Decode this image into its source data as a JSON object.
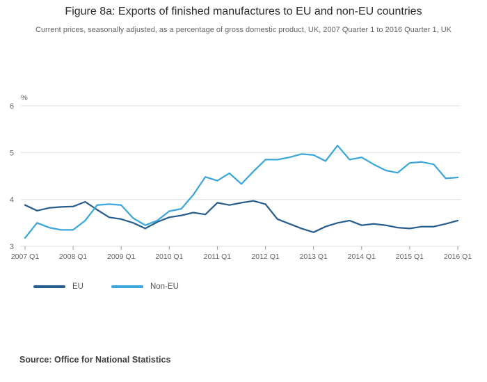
{
  "header": {
    "title": "Figure 8a: Exports of finished manufactures to EU and non-EU countries",
    "subtitle": "Current prices, seasonally adjusted, as a percentage of gross domestic product, UK, 2007 Quarter 1 to 2016 Quarter 1, UK"
  },
  "source": "Source: Office for National Statistics",
  "chart_data": {
    "type": "line",
    "title": "Figure 8a: Exports of finished manufactures to EU and non-EU countries",
    "subtitle": "Current prices, seasonally adjusted, as a percentage of gross domestic product, UK, 2007 Quarter 1 to 2016 Quarter 1, UK",
    "ylabel": "%",
    "ylim": [
      3,
      6
    ],
    "yticks": [
      3,
      4,
      5,
      6
    ],
    "grid": true,
    "legend_position": "bottom-left",
    "xtick_every": 4,
    "x": [
      "2007 Q1",
      "2007 Q2",
      "2007 Q3",
      "2007 Q4",
      "2008 Q1",
      "2008 Q2",
      "2008 Q3",
      "2008 Q4",
      "2009 Q1",
      "2009 Q2",
      "2009 Q3",
      "2009 Q4",
      "2010 Q1",
      "2010 Q2",
      "2010 Q3",
      "2010 Q4",
      "2011 Q1",
      "2011 Q2",
      "2011 Q3",
      "2011 Q4",
      "2012 Q1",
      "2012 Q2",
      "2012 Q3",
      "2012 Q4",
      "2013 Q1",
      "2013 Q2",
      "2013 Q3",
      "2013 Q4",
      "2014 Q1",
      "2014 Q2",
      "2014 Q3",
      "2014 Q4",
      "2015 Q1",
      "2015 Q2",
      "2015 Q3",
      "2015 Q4",
      "2016 Q1"
    ],
    "series": [
      {
        "name": "EU",
        "color": "#275e8e",
        "values": [
          3.88,
          3.76,
          3.82,
          3.84,
          3.85,
          3.95,
          3.78,
          3.62,
          3.58,
          3.5,
          3.38,
          3.52,
          3.62,
          3.66,
          3.72,
          3.68,
          3.93,
          3.88,
          3.93,
          3.97,
          3.9,
          3.58,
          3.48,
          3.38,
          3.3,
          3.42,
          3.5,
          3.55,
          3.45,
          3.48,
          3.45,
          3.4,
          3.38,
          3.42,
          3.42,
          3.48,
          3.55
        ]
      },
      {
        "name": "Non-EU",
        "color": "#3ba6da",
        "values": [
          3.18,
          3.5,
          3.4,
          3.35,
          3.35,
          3.55,
          3.88,
          3.9,
          3.88,
          3.6,
          3.45,
          3.55,
          3.75,
          3.8,
          4.1,
          4.48,
          4.4,
          4.56,
          4.33,
          4.6,
          4.85,
          4.85,
          4.9,
          4.97,
          4.95,
          4.82,
          5.15,
          4.85,
          4.9,
          4.75,
          4.62,
          4.57,
          4.78,
          4.8,
          4.75,
          4.45,
          4.47
        ]
      }
    ]
  }
}
